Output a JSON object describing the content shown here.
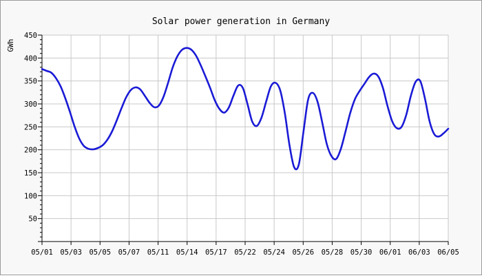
{
  "chart_data": {
    "type": "line",
    "title": "Solar power generation in Germany",
    "xlabel": "",
    "ylabel": "GWh",
    "ylim": [
      0,
      450
    ],
    "y_ticks": [
      50,
      100,
      150,
      200,
      250,
      300,
      350,
      400,
      450
    ],
    "x_tick_labels": [
      "05/01",
      "05/03",
      "05/05",
      "05/07",
      "05/11",
      "05/14",
      "05/17",
      "05/22",
      "05/24",
      "05/26",
      "05/28",
      "05/30",
      "06/01",
      "06/03",
      "06/05"
    ],
    "grid": true,
    "legend": "none",
    "colors": {
      "line": "#1a1ad6",
      "grid": "#c8c8c8",
      "axis": "#000000",
      "plot_bg": "#ffffff",
      "page_bg": "#f8f8f8"
    },
    "series": [
      {
        "values": [
          376,
          372,
          368,
          356,
          338,
          312,
          282,
          250,
          224,
          208,
          202,
          201,
          204,
          210,
          222,
          240,
          264,
          290,
          314,
          330,
          336,
          332,
          318,
          303,
          293,
          296,
          315,
          346,
          380,
          404,
          418,
          422,
          418,
          405,
          384,
          360,
          335,
          308,
          289,
          281,
          292,
          318,
          340,
          335,
          300,
          262,
          252,
          270,
          305,
          338,
          346,
          330,
          280,
          210,
          162,
          168,
          240,
          310,
          324,
          305,
          260,
          212,
          186,
          180,
          202,
          240,
          280,
          310,
          328,
          343,
          358,
          366,
          360,
          335,
          295,
          262,
          247,
          250,
          276,
          318,
          348,
          350,
          312,
          262,
          234,
          229,
          236,
          246
        ]
      }
    ]
  }
}
